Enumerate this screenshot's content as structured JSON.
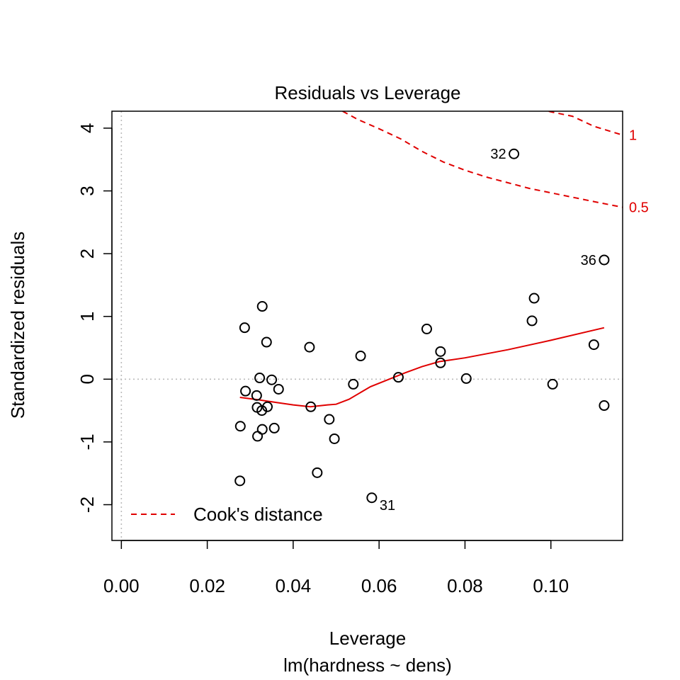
{
  "chart_data": {
    "type": "scatter",
    "title": "Residuals vs Leverage",
    "xlabel": "Leverage",
    "subtitle": "lm(hardness ~ dens)",
    "ylabel": "Standardized residuals",
    "xlim": [
      -0.0022,
      0.1167
    ],
    "ylim": [
      -2.57,
      4.27
    ],
    "xticks": [
      0.0,
      0.02,
      0.04,
      0.06,
      0.08,
      0.1
    ],
    "xtick_labels": [
      "0.00",
      "0.02",
      "0.04",
      "0.06",
      "0.08",
      "0.10"
    ],
    "yticks": [
      -2,
      -1,
      0,
      1,
      2,
      3,
      4
    ],
    "ytick_labels": [
      "-2",
      "-1",
      "0",
      "1",
      "2",
      "3",
      "4"
    ],
    "grid": false,
    "reference_lines": {
      "x": 0,
      "y": 0,
      "style": "dotted",
      "color": "#bbbbbb"
    },
    "points": [
      {
        "x": 0.0276,
        "y": -1.62
      },
      {
        "x": 0.0277,
        "y": -0.75
      },
      {
        "x": 0.0287,
        "y": 0.82
      },
      {
        "x": 0.0289,
        "y": -0.19
      },
      {
        "x": 0.0315,
        "y": -0.26
      },
      {
        "x": 0.0316,
        "y": -0.45
      },
      {
        "x": 0.0317,
        "y": -0.91
      },
      {
        "x": 0.0322,
        "y": 0.02
      },
      {
        "x": 0.0327,
        "y": -0.5
      },
      {
        "x": 0.0328,
        "y": -0.8
      },
      {
        "x": 0.0328,
        "y": 1.16
      },
      {
        "x": 0.0338,
        "y": 0.59
      },
      {
        "x": 0.034,
        "y": -0.44
      },
      {
        "x": 0.035,
        "y": -0.01
      },
      {
        "x": 0.0356,
        "y": -0.78
      },
      {
        "x": 0.0366,
        "y": -0.16
      },
      {
        "x": 0.0438,
        "y": 0.51
      },
      {
        "x": 0.0441,
        "y": -0.44
      },
      {
        "x": 0.0456,
        "y": -1.49
      },
      {
        "x": 0.0484,
        "y": -0.64
      },
      {
        "x": 0.0496,
        "y": -0.95
      },
      {
        "x": 0.054,
        "y": -0.08
      },
      {
        "x": 0.0557,
        "y": 0.37
      },
      {
        "x": 0.0583,
        "y": -1.89,
        "label": "31"
      },
      {
        "x": 0.0645,
        "y": 0.03
      },
      {
        "x": 0.0711,
        "y": 0.8
      },
      {
        "x": 0.0743,
        "y": 0.44
      },
      {
        "x": 0.0743,
        "y": 0.26
      },
      {
        "x": 0.0803,
        "y": 0.01
      },
      {
        "x": 0.0914,
        "y": 3.59,
        "label": "32"
      },
      {
        "x": 0.0956,
        "y": 0.93
      },
      {
        "x": 0.0961,
        "y": 1.29
      },
      {
        "x": 0.1004,
        "y": -0.08
      },
      {
        "x": 0.11,
        "y": 0.55
      },
      {
        "x": 0.1124,
        "y": 1.9,
        "label": "36"
      },
      {
        "x": 0.1124,
        "y": -0.42
      }
    ],
    "smoother": {
      "color": "#e00000",
      "x": [
        0.0276,
        0.032,
        0.036,
        0.04,
        0.044,
        0.048,
        0.05,
        0.053,
        0.058,
        0.062,
        0.066,
        0.07,
        0.074,
        0.08,
        0.09,
        0.1,
        0.1124
      ],
      "y": [
        -0.29,
        -0.33,
        -0.37,
        -0.41,
        -0.44,
        -0.41,
        -0.4,
        -0.32,
        -0.12,
        -0.01,
        0.1,
        0.2,
        0.28,
        0.34,
        0.47,
        0.62,
        0.82
      ]
    },
    "cooks_distance": {
      "color": "#e00000",
      "style": "dashed",
      "contours": [
        {
          "label": "0.5",
          "x": [
            0.0515,
            0.055,
            0.06,
            0.065,
            0.07,
            0.075,
            0.08,
            0.085,
            0.09,
            0.095,
            0.1,
            0.105,
            0.11,
            0.1167
          ],
          "y": [
            4.27,
            4.14,
            3.99,
            3.83,
            3.63,
            3.46,
            3.33,
            3.22,
            3.13,
            3.04,
            2.97,
            2.9,
            2.83,
            2.74
          ]
        },
        {
          "label": "1",
          "x": [
            0.0995,
            0.1,
            0.105,
            0.11,
            0.1167
          ],
          "y": [
            4.27,
            4.26,
            4.19,
            4.03,
            3.89
          ]
        }
      ]
    },
    "legend": {
      "placement": "bottom-left",
      "entries": [
        "Cook's distance"
      ]
    }
  }
}
